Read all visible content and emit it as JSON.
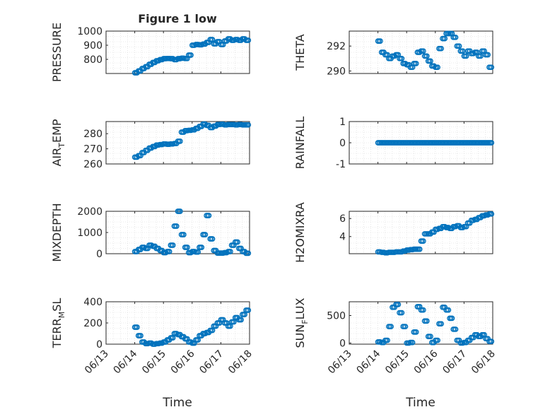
{
  "figure": {
    "title": "Figure 1 low",
    "xlabel": "Time",
    "marker_color": "#0072BD"
  },
  "chart_data": [
    {
      "type": "scatter",
      "ylabel_parts": [
        "PRESSURE"
      ],
      "ylim": [
        700,
        1000
      ],
      "yticks": [
        800,
        900,
        1000
      ],
      "ytick_labels": [
        "800",
        "900",
        "1000"
      ],
      "grid": true,
      "x_tick_labels": [
        "06/13",
        "06/14",
        "06/15",
        "06/16",
        "06/17",
        "06/18"
      ],
      "points": [
        [
          "06/14 00:00",
          705
        ],
        [
          "06/14 03:00",
          718
        ],
        [
          "06/14 06:00",
          735
        ],
        [
          "06/14 09:00",
          748
        ],
        [
          "06/14 12:00",
          765
        ],
        [
          "06/14 15:00",
          778
        ],
        [
          "06/14 18:00",
          790
        ],
        [
          "06/14 21:00",
          798
        ],
        [
          "06/15 00:00",
          805
        ],
        [
          "06/15 03:00",
          806
        ],
        [
          "06/15 06:00",
          805
        ],
        [
          "06/15 09:00",
          798
        ],
        [
          "06/15 12:00",
          805
        ],
        [
          "06/15 15:00",
          808
        ],
        [
          "06/15 18:00",
          806
        ],
        [
          "06/15 21:00",
          830
        ],
        [
          "06/16 00:00",
          900
        ],
        [
          "06/16 03:00",
          905
        ],
        [
          "06/16 06:00",
          903
        ],
        [
          "06/16 09:00",
          908
        ],
        [
          "06/16 12:00",
          920
        ],
        [
          "06/16 15:00",
          940
        ],
        [
          "06/16 18:00",
          910
        ],
        [
          "06/16 21:00",
          925
        ],
        [
          "06/17 00:00",
          905
        ],
        [
          "06/17 03:00",
          930
        ],
        [
          "06/17 06:00",
          945
        ],
        [
          "06/17 09:00",
          935
        ],
        [
          "06/17 12:00",
          940
        ],
        [
          "06/17 15:00",
          935
        ],
        [
          "06/17 18:00",
          945
        ],
        [
          "06/17 21:00",
          935
        ]
      ]
    },
    {
      "type": "scatter",
      "ylabel_parts": [
        "THETA"
      ],
      "ylim": [
        289.8,
        293.2
      ],
      "yticks": [
        290,
        292
      ],
      "ytick_labels": [
        "290",
        "292"
      ],
      "grid": true,
      "x_tick_labels": [
        "06/13",
        "06/14",
        "06/15",
        "06/16",
        "06/17",
        "06/18"
      ],
      "points": [
        [
          "06/14 00:00",
          292.4
        ],
        [
          "06/14 03:00",
          291.5
        ],
        [
          "06/14 06:00",
          291.3
        ],
        [
          "06/14 09:00",
          291.0
        ],
        [
          "06/14 12:00",
          291.2
        ],
        [
          "06/14 15:00",
          291.3
        ],
        [
          "06/14 18:00",
          291.0
        ],
        [
          "06/14 21:00",
          290.6
        ],
        [
          "06/15 00:00",
          290.5
        ],
        [
          "06/15 03:00",
          290.3
        ],
        [
          "06/15 06:00",
          290.6
        ],
        [
          "06/15 09:00",
          291.5
        ],
        [
          "06/15 12:00",
          291.6
        ],
        [
          "06/15 15:00",
          291.2
        ],
        [
          "06/15 18:00",
          290.8
        ],
        [
          "06/15 21:00",
          290.4
        ],
        [
          "06/16 00:00",
          290.3
        ],
        [
          "06/16 03:00",
          291.8
        ],
        [
          "06/16 06:00",
          292.6
        ],
        [
          "06/16 09:00",
          293.0
        ],
        [
          "06/16 12:00",
          293.0
        ],
        [
          "06/16 15:00",
          292.7
        ],
        [
          "06/16 18:00",
          292.0
        ],
        [
          "06/16 21:00",
          291.6
        ],
        [
          "06/17 00:00",
          291.2
        ],
        [
          "06/17 03:00",
          291.6
        ],
        [
          "06/17 06:00",
          291.4
        ],
        [
          "06/17 09:00",
          291.5
        ],
        [
          "06/17 12:00",
          291.2
        ],
        [
          "06/17 15:00",
          291.6
        ],
        [
          "06/17 18:00",
          291.3
        ],
        [
          "06/17 21:00",
          290.3
        ]
      ]
    },
    {
      "type": "scatter",
      "ylabel_parts": [
        "AIR",
        "T",
        "EMP"
      ],
      "ylim": [
        260,
        288
      ],
      "yticks": [
        260,
        270,
        280
      ],
      "ytick_labels": [
        "260",
        "270",
        "280"
      ],
      "grid": true,
      "x_tick_labels": [
        "06/13",
        "06/14",
        "06/15",
        "06/16",
        "06/17",
        "06/18"
      ],
      "points": [
        [
          "06/14 00:00",
          264.5
        ],
        [
          "06/14 03:00",
          265.5
        ],
        [
          "06/14 06:00",
          267.5
        ],
        [
          "06/14 09:00",
          269.0
        ],
        [
          "06/14 12:00",
          270.5
        ],
        [
          "06/14 15:00",
          271.5
        ],
        [
          "06/14 18:00",
          272.5
        ],
        [
          "06/14 21:00",
          272.8
        ],
        [
          "06/15 00:00",
          273.2
        ],
        [
          "06/15 03:00",
          273.0
        ],
        [
          "06/15 06:00",
          273.2
        ],
        [
          "06/15 09:00",
          273.5
        ],
        [
          "06/15 12:00",
          275.0
        ],
        [
          "06/15 15:00",
          281.0
        ],
        [
          "06/15 18:00",
          282.0
        ],
        [
          "06/15 21:00",
          282.2
        ],
        [
          "06/16 00:00",
          282.5
        ],
        [
          "06/16 03:00",
          283.5
        ],
        [
          "06/16 06:00",
          284.8
        ],
        [
          "06/16 09:00",
          286.3
        ],
        [
          "06/16 12:00",
          285.5
        ],
        [
          "06/16 15:00",
          284.0
        ],
        [
          "06/16 18:00",
          285.0
        ],
        [
          "06/16 21:00",
          286.0
        ],
        [
          "06/17 00:00",
          286.2
        ],
        [
          "06/17 03:00",
          285.8
        ],
        [
          "06/17 06:00",
          286.0
        ],
        [
          "06/17 09:00",
          286.0
        ],
        [
          "06/17 12:00",
          285.8
        ],
        [
          "06/17 15:00",
          286.0
        ],
        [
          "06/17 18:00",
          285.8
        ],
        [
          "06/17 21:00",
          285.8
        ]
      ]
    },
    {
      "type": "scatter",
      "ylabel_parts": [
        "RAINFALL"
      ],
      "ylim": [
        -1,
        1
      ],
      "yticks": [
        -1,
        0,
        1
      ],
      "ytick_labels": [
        "-1",
        "0",
        "1"
      ],
      "grid": true,
      "x_tick_labels": [
        "06/13",
        "06/14",
        "06/15",
        "06/16",
        "06/17",
        "06/18"
      ],
      "points": [
        [
          "06/14 00:00",
          0
        ],
        [
          "06/14 03:00",
          0
        ],
        [
          "06/14 06:00",
          0
        ],
        [
          "06/14 09:00",
          0
        ],
        [
          "06/14 12:00",
          0
        ],
        [
          "06/14 15:00",
          0
        ],
        [
          "06/14 18:00",
          0
        ],
        [
          "06/14 21:00",
          0
        ],
        [
          "06/15 00:00",
          0
        ],
        [
          "06/15 03:00",
          0
        ],
        [
          "06/15 06:00",
          0
        ],
        [
          "06/15 09:00",
          0
        ],
        [
          "06/15 12:00",
          0
        ],
        [
          "06/15 15:00",
          0
        ],
        [
          "06/15 18:00",
          0
        ],
        [
          "06/15 21:00",
          0
        ],
        [
          "06/16 00:00",
          0
        ],
        [
          "06/16 03:00",
          0
        ],
        [
          "06/16 06:00",
          0
        ],
        [
          "06/16 09:00",
          0
        ],
        [
          "06/16 12:00",
          0
        ],
        [
          "06/16 15:00",
          0
        ],
        [
          "06/16 18:00",
          0
        ],
        [
          "06/16 21:00",
          0
        ],
        [
          "06/17 00:00",
          0
        ],
        [
          "06/17 03:00",
          0
        ],
        [
          "06/17 06:00",
          0
        ],
        [
          "06/17 09:00",
          0
        ],
        [
          "06/17 12:00",
          0
        ],
        [
          "06/17 15:00",
          0
        ],
        [
          "06/17 18:00",
          0
        ],
        [
          "06/17 21:00",
          0
        ]
      ]
    },
    {
      "type": "scatter",
      "ylabel_parts": [
        "MIXDEPTH"
      ],
      "ylim": [
        0,
        2000
      ],
      "yticks": [
        0,
        1000,
        2000
      ],
      "ytick_labels": [
        "0",
        "1000",
        "2000"
      ],
      "grid": true,
      "x_tick_labels": [
        "06/13",
        "06/14",
        "06/15",
        "06/16",
        "06/17",
        "06/18"
      ],
      "points": [
        [
          "06/14 00:00",
          100
        ],
        [
          "06/14 03:00",
          200
        ],
        [
          "06/14 06:00",
          300
        ],
        [
          "06/14 09:00",
          250
        ],
        [
          "06/14 12:00",
          400
        ],
        [
          "06/14 15:00",
          350
        ],
        [
          "06/14 18:00",
          250
        ],
        [
          "06/14 21:00",
          150
        ],
        [
          "06/15 00:00",
          50
        ],
        [
          "06/15 03:00",
          100
        ],
        [
          "06/15 06:00",
          400
        ],
        [
          "06/15 09:00",
          1300
        ],
        [
          "06/15 12:00",
          2000
        ],
        [
          "06/15 15:00",
          900
        ],
        [
          "06/15 18:00",
          300
        ],
        [
          "06/15 21:00",
          50
        ],
        [
          "06/16 00:00",
          100
        ],
        [
          "06/16 03:00",
          80
        ],
        [
          "06/16 06:00",
          300
        ],
        [
          "06/16 09:00",
          900
        ],
        [
          "06/16 12:00",
          1800
        ],
        [
          "06/16 15:00",
          700
        ],
        [
          "06/16 18:00",
          150
        ],
        [
          "06/16 21:00",
          30
        ],
        [
          "06/17 00:00",
          30
        ],
        [
          "06/17 03:00",
          50
        ],
        [
          "06/17 06:00",
          100
        ],
        [
          "06/17 09:00",
          400
        ],
        [
          "06/17 12:00",
          550
        ],
        [
          "06/17 15:00",
          250
        ],
        [
          "06/17 18:00",
          100
        ],
        [
          "06/17 21:00",
          20
        ]
      ]
    },
    {
      "type": "scatter",
      "ylabel_parts": [
        "H2OMIXRA"
      ],
      "ylim": [
        2.1,
        6.8
      ],
      "yticks": [
        4,
        6
      ],
      "ytick_labels": [
        "4",
        "6"
      ],
      "grid": true,
      "x_tick_labels": [
        "06/13",
        "06/14",
        "06/15",
        "06/16",
        "06/17",
        "06/18"
      ],
      "points": [
        [
          "06/14 00:00",
          2.3
        ],
        [
          "06/14 03:00",
          2.25
        ],
        [
          "06/14 06:00",
          2.2
        ],
        [
          "06/14 09:00",
          2.25
        ],
        [
          "06/14 12:00",
          2.25
        ],
        [
          "06/14 15:00",
          2.3
        ],
        [
          "06/14 18:00",
          2.3
        ],
        [
          "06/14 21:00",
          2.4
        ],
        [
          "06/15 00:00",
          2.5
        ],
        [
          "06/15 03:00",
          2.55
        ],
        [
          "06/15 06:00",
          2.6
        ],
        [
          "06/15 09:00",
          2.6
        ],
        [
          "06/15 12:00",
          3.5
        ],
        [
          "06/15 15:00",
          4.3
        ],
        [
          "06/15 18:00",
          4.3
        ],
        [
          "06/15 21:00",
          4.5
        ],
        [
          "06/16 00:00",
          4.8
        ],
        [
          "06/16 03:00",
          4.9
        ],
        [
          "06/16 06:00",
          5.1
        ],
        [
          "06/16 09:00",
          5.0
        ],
        [
          "06/16 12:00",
          4.9
        ],
        [
          "06/16 15:00",
          5.1
        ],
        [
          "06/16 18:00",
          5.2
        ],
        [
          "06/16 21:00",
          5.0
        ],
        [
          "06/17 00:00",
          5.1
        ],
        [
          "06/17 03:00",
          5.5
        ],
        [
          "06/17 06:00",
          5.8
        ],
        [
          "06/17 09:00",
          5.9
        ],
        [
          "06/17 12:00",
          6.1
        ],
        [
          "06/17 15:00",
          6.3
        ],
        [
          "06/17 18:00",
          6.4
        ],
        [
          "06/17 21:00",
          6.5
        ]
      ]
    },
    {
      "type": "scatter",
      "ylabel_parts": [
        "TERR",
        "M",
        "SL"
      ],
      "ylim": [
        0,
        400
      ],
      "yticks": [
        0,
        200,
        400
      ],
      "ytick_labels": [
        "0",
        "200",
        "400"
      ],
      "grid": true,
      "x_tick_labels": [
        "06/13",
        "06/14",
        "06/15",
        "06/16",
        "06/17",
        "06/18"
      ],
      "points": [
        [
          "06/14 00:00",
          160
        ],
        [
          "06/14 03:00",
          80
        ],
        [
          "06/14 06:00",
          20
        ],
        [
          "06/14 09:00",
          5
        ],
        [
          "06/14 12:00",
          10
        ],
        [
          "06/14 15:00",
          0
        ],
        [
          "06/14 18:00",
          5
        ],
        [
          "06/14 21:00",
          10
        ],
        [
          "06/15 00:00",
          20
        ],
        [
          "06/15 03:00",
          40
        ],
        [
          "06/15 06:00",
          60
        ],
        [
          "06/15 09:00",
          100
        ],
        [
          "06/15 12:00",
          90
        ],
        [
          "06/15 15:00",
          70
        ],
        [
          "06/15 18:00",
          50
        ],
        [
          "06/15 21:00",
          20
        ],
        [
          "06/16 00:00",
          10
        ],
        [
          "06/16 03:00",
          40
        ],
        [
          "06/16 06:00",
          80
        ],
        [
          "06/16 09:00",
          100
        ],
        [
          "06/16 12:00",
          110
        ],
        [
          "06/16 15:00",
          130
        ],
        [
          "06/16 18:00",
          170
        ],
        [
          "06/16 21:00",
          200
        ],
        [
          "06/17 00:00",
          230
        ],
        [
          "06/17 03:00",
          200
        ],
        [
          "06/17 06:00",
          170
        ],
        [
          "06/17 09:00",
          210
        ],
        [
          "06/17 12:00",
          250
        ],
        [
          "06/17 15:00",
          230
        ],
        [
          "06/17 18:00",
          280
        ],
        [
          "06/17 21:00",
          320
        ]
      ]
    },
    {
      "type": "scatter",
      "ylabel_parts": [
        "SUN",
        "F",
        "LUX"
      ],
      "ylim": [
        -20,
        750
      ],
      "yticks": [
        0,
        500
      ],
      "ytick_labels": [
        "0",
        "500"
      ],
      "grid": true,
      "x_tick_labels": [
        "06/13",
        "06/14",
        "06/15",
        "06/16",
        "06/17",
        "06/18"
      ],
      "points": [
        [
          "06/14 00:00",
          20
        ],
        [
          "06/14 03:00",
          10
        ],
        [
          "06/14 06:00",
          50
        ],
        [
          "06/14 09:00",
          300
        ],
        [
          "06/14 12:00",
          650
        ],
        [
          "06/14 15:00",
          700
        ],
        [
          "06/14 18:00",
          550
        ],
        [
          "06/14 21:00",
          300
        ],
        [
          "06/15 00:00",
          0
        ],
        [
          "06/15 03:00",
          10
        ],
        [
          "06/15 06:00",
          200
        ],
        [
          "06/15 09:00",
          660
        ],
        [
          "06/15 12:00",
          600
        ],
        [
          "06/15 15:00",
          400
        ],
        [
          "06/15 18:00",
          120
        ],
        [
          "06/15 21:00",
          10
        ],
        [
          "06/16 00:00",
          50
        ],
        [
          "06/16 03:00",
          350
        ],
        [
          "06/16 06:00",
          650
        ],
        [
          "06/16 09:00",
          600
        ],
        [
          "06/16 12:00",
          450
        ],
        [
          "06/16 15:00",
          250
        ],
        [
          "06/16 18:00",
          50
        ],
        [
          "06/16 21:00",
          0
        ],
        [
          "06/17 00:00",
          10
        ],
        [
          "06/17 03:00",
          50
        ],
        [
          "06/17 06:00",
          100
        ],
        [
          "06/17 09:00",
          150
        ],
        [
          "06/17 12:00",
          120
        ],
        [
          "06/17 15:00",
          150
        ],
        [
          "06/17 18:00",
          80
        ],
        [
          "06/17 21:00",
          30
        ]
      ]
    }
  ]
}
